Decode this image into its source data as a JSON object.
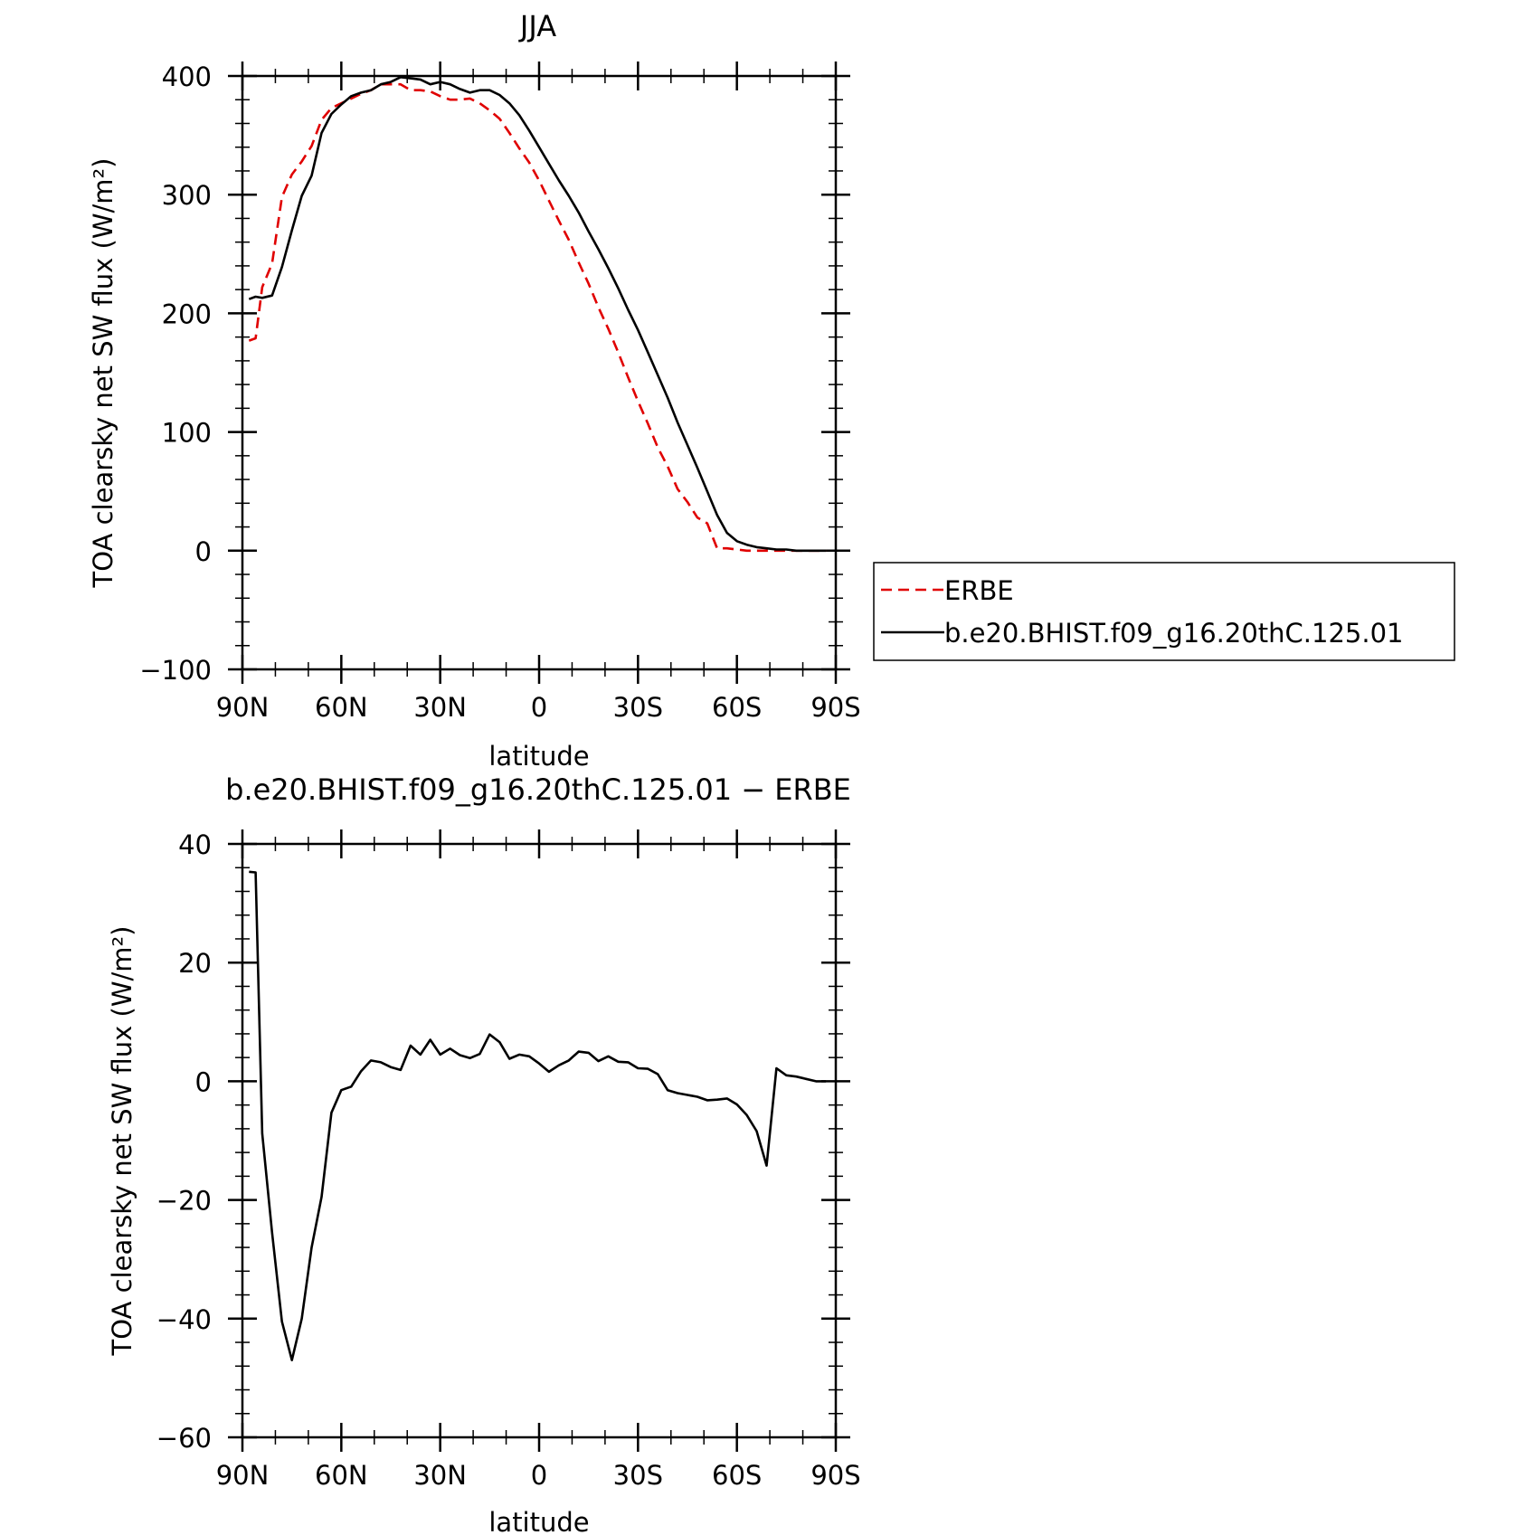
{
  "chart_data": [
    {
      "type": "line",
      "title": "JJA",
      "xlabel": "latitude",
      "ylabel": "TOA clearsky net SW flux (W/m²)",
      "xlim": [
        90,
        -90
      ],
      "ylim": [
        -100,
        400
      ],
      "x_ticks": [
        {
          "value": 90,
          "label": "90N"
        },
        {
          "value": 60,
          "label": "60N"
        },
        {
          "value": 30,
          "label": "30N"
        },
        {
          "value": 0,
          "label": "0"
        },
        {
          "value": -30,
          "label": "30S"
        },
        {
          "value": -60,
          "label": "60S"
        },
        {
          "value": -90,
          "label": "90S"
        }
      ],
      "y_ticks": [
        {
          "value": 400,
          "label": "400"
        },
        {
          "value": 300,
          "label": "300"
        },
        {
          "value": 200,
          "label": "200"
        },
        {
          "value": 100,
          "label": "100"
        },
        {
          "value": 0,
          "label": "0"
        },
        {
          "value": -100,
          "label": "−100"
        }
      ],
      "legend_position": "right",
      "series": [
        {
          "name": "ERBE",
          "color": "#e00000",
          "dash": "dashed",
          "x": [
            88,
            86,
            84,
            81,
            78,
            75,
            72,
            69,
            66,
            63,
            60,
            57,
            54,
            51,
            48,
            45,
            42,
            39,
            36,
            33,
            30,
            27,
            24,
            21,
            18,
            15,
            12,
            9,
            6,
            3,
            0,
            -3,
            -6,
            -9,
            -12,
            -15,
            -18,
            -21,
            -24,
            -27,
            -30,
            -33,
            -36,
            -39,
            -42,
            -45,
            -48,
            -51,
            -54,
            -57,
            -60,
            -63,
            -66,
            -69,
            -72,
            -75,
            -78,
            -81,
            -84,
            -87
          ],
          "y": [
            177,
            179,
            222,
            242,
            298,
            317,
            328,
            341,
            363,
            373,
            377,
            381,
            385,
            388,
            393,
            393,
            393,
            388,
            388,
            387,
            383,
            380,
            380,
            381,
            377,
            371,
            364,
            352,
            339,
            327,
            312,
            295,
            278,
            262,
            243,
            225,
            205,
            187,
            167,
            146,
            126,
            107,
            87,
            71,
            52,
            41,
            28,
            23,
            2,
            2,
            1,
            0,
            0,
            0,
            0,
            0,
            0,
            0,
            0,
            0
          ]
        },
        {
          "name": "b.e20.BHIST.f09_g16.20thC.125.01",
          "color": "#000000",
          "dash": "solid",
          "x": [
            88,
            86,
            84,
            81,
            78,
            75,
            72,
            69,
            66,
            63,
            60,
            57,
            54,
            51,
            48,
            45,
            42,
            39,
            36,
            33,
            30,
            27,
            24,
            21,
            18,
            15,
            12,
            9,
            6,
            3,
            0,
            -3,
            -6,
            -9,
            -12,
            -15,
            -18,
            -21,
            -24,
            -27,
            -30,
            -33,
            -36,
            -39,
            -42,
            -45,
            -48,
            -51,
            -54,
            -57,
            -60,
            -63,
            -66,
            -69,
            -72,
            -75,
            -78,
            -81,
            -84,
            -87
          ],
          "y": [
            212,
            214,
            213,
            215,
            239,
            270,
            299,
            316,
            352,
            368,
            376,
            383,
            386,
            388,
            393,
            395,
            399,
            398,
            397,
            393,
            395,
            393,
            389,
            386,
            388,
            388,
            384,
            377,
            367,
            354,
            340,
            326,
            312,
            299,
            285,
            269,
            254,
            238,
            221,
            203,
            186,
            167,
            148,
            129,
            108,
            89,
            70,
            50,
            30,
            15,
            8,
            5,
            3,
            2,
            1,
            1,
            0,
            0,
            0,
            0
          ]
        }
      ]
    },
    {
      "type": "line",
      "title": "b.e20.BHIST.f09_g16.20thC.125.01 − ERBE",
      "xlabel": "latitude",
      "ylabel": "TOA clearsky net SW flux (W/m²)",
      "xlim": [
        90,
        -90
      ],
      "ylim": [
        -60,
        40
      ],
      "x_ticks": [
        {
          "value": 90,
          "label": "90N"
        },
        {
          "value": 60,
          "label": "60N"
        },
        {
          "value": 30,
          "label": "30N"
        },
        {
          "value": 0,
          "label": "0"
        },
        {
          "value": -30,
          "label": "30S"
        },
        {
          "value": -60,
          "label": "60S"
        },
        {
          "value": -90,
          "label": "90S"
        }
      ],
      "y_ticks": [
        {
          "value": 40,
          "label": "40"
        },
        {
          "value": 20,
          "label": "20"
        },
        {
          "value": 0,
          "label": "0"
        },
        {
          "value": -20,
          "label": "−20"
        },
        {
          "value": -40,
          "label": "−40"
        },
        {
          "value": -60,
          "label": "−60"
        }
      ],
      "series": [
        {
          "color": "#000000",
          "dash": "solid",
          "x": [
            88,
            86,
            84,
            81,
            78,
            75,
            72,
            69,
            66,
            63,
            60,
            57,
            54,
            51,
            48,
            45,
            42,
            39,
            36,
            33,
            30,
            27,
            24,
            21,
            18,
            15,
            12,
            9,
            6,
            3,
            0,
            -3,
            -6,
            -9,
            -12,
            -15,
            -18,
            -21,
            -24,
            -27,
            -30,
            -33,
            -36,
            -39,
            -42,
            -45,
            -48,
            -51,
            -54,
            -57,
            -60,
            -63,
            -66,
            -69,
            -72,
            -75,
            -78,
            -81,
            -84,
            -87
          ],
          "y": [
            35.3,
            35.2,
            -8.8,
            -25.5,
            -40.5,
            -47.0,
            -40.0,
            -28.0,
            -19.5,
            -5.3,
            -1.5,
            -0.9,
            1.7,
            3.5,
            3.2,
            2.4,
            1.9,
            6.0,
            4.5,
            7.0,
            4.5,
            5.5,
            4.4,
            3.9,
            4.6,
            7.9,
            6.6,
            3.8,
            4.5,
            4.2,
            3.0,
            1.6,
            2.7,
            3.5,
            5.0,
            4.8,
            3.4,
            4.2,
            3.3,
            3.2,
            2.2,
            2.1,
            1.2,
            -1.5,
            -2.0,
            -2.3,
            -2.6,
            -3.2,
            -3.1,
            -2.9,
            -3.9,
            -5.7,
            -8.4,
            -14.2,
            2.2,
            1.0,
            0.8,
            0.4,
            0.0,
            0.0
          ]
        }
      ]
    }
  ]
}
